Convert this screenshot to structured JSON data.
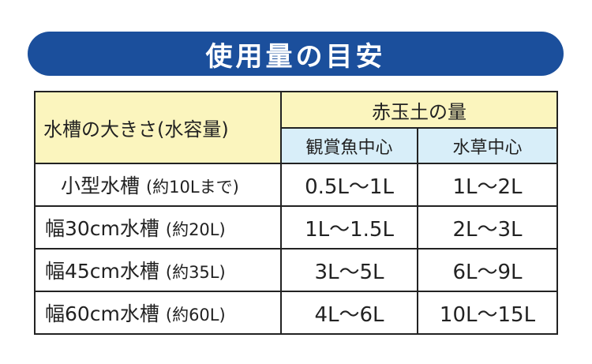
{
  "banner": {
    "title": "使用量の目安"
  },
  "table": {
    "header_size": "水槽の大きさ(水容量)",
    "header_group": "赤玉土の量",
    "header_sub": [
      "観賞魚中心",
      "水草中心"
    ],
    "rows": [
      {
        "tank": "小型水槽",
        "volume": "(約10Lまで)",
        "fish": "0.5L～1L",
        "plants": "1L～2L"
      },
      {
        "tank": "幅30cm水槽",
        "volume": "(約20L)",
        "fish": "1L～1.5L",
        "plants": "2L～3L"
      },
      {
        "tank": "幅45cm水槽",
        "volume": "(約35L)",
        "fish": "3L～5L",
        "plants": "6L～9L"
      },
      {
        "tank": "幅60cm水槽",
        "volume": "(約60L)",
        "fish": "4L～6L",
        "plants": "10L～15L"
      }
    ]
  },
  "colors": {
    "banner": "#1b4f9c",
    "header_yellow": "#fbf5be",
    "header_blue": "#d8eef9",
    "border": "#222222"
  }
}
